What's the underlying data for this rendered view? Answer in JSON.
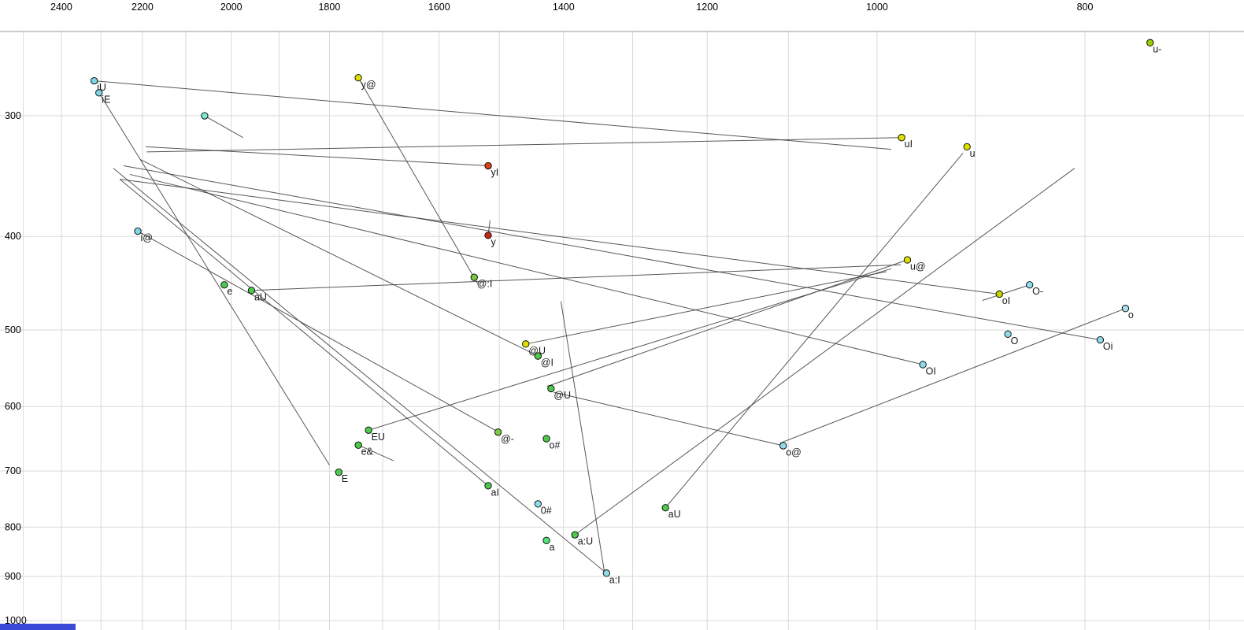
{
  "chart_data": {
    "type": "scatter",
    "title": "",
    "xlabel": "",
    "ylabel": "",
    "axes": {
      "x_ticks": [
        2400,
        2200,
        2000,
        1800,
        1600,
        1400,
        1200,
        1000,
        800
      ],
      "y_ticks": [
        300,
        400,
        500,
        600,
        700,
        800,
        900,
        1000
      ],
      "x_scale": "log",
      "y_scale": "log",
      "x_reversed": true,
      "x_range": [
        2564,
        674
      ],
      "y_range": [
        245,
        1011
      ],
      "grid": true,
      "grid_step": 100,
      "x_grid_from": 2500,
      "x_grid_to": 700
    },
    "points": [
      {
        "label": "u-",
        "f2": 746,
        "f1": 252,
        "color": "#9acd00"
      },
      {
        "label": "iU",
        "f2": 2317,
        "f1": 276,
        "color": "#7fd4e8"
      },
      {
        "label": "iE",
        "f2": 2305,
        "f1": 284,
        "color": "#7fd4e8"
      },
      {
        "label": "y@",
        "f2": 1745,
        "f1": 274,
        "color": "#e0e000"
      },
      {
        "label": "",
        "f2": 2058,
        "f1": 300,
        "color": "#7fe8d4"
      },
      {
        "label": "uI",
        "f2": 974,
        "f1": 316,
        "color": "#e0e000"
      },
      {
        "label": "u",
        "f2": 908,
        "f1": 323,
        "color": "#dede00"
      },
      {
        "label": "yI",
        "f2": 1518,
        "f1": 338,
        "color": "#d84315"
      },
      {
        "label": "y",
        "f2": 1518,
        "f1": 399,
        "color": "#c62814"
      },
      {
        "label": "i@",
        "f2": 2211,
        "f1": 395,
        "color": "#7fd4e8"
      },
      {
        "label": "u@",
        "f2": 968,
        "f1": 423,
        "color": "#dede00"
      },
      {
        "label": "O-",
        "f2": 849,
        "f1": 449,
        "color": "#8fdce8"
      },
      {
        "label": "oI",
        "f2": 877,
        "f1": 459,
        "color": "#c6d400"
      },
      {
        "label": "o",
        "f2": 766,
        "f1": 475,
        "color": "#a8e0ec"
      },
      {
        "label": "e",
        "f2": 2015,
        "f1": 449,
        "color": "#4ec94e"
      },
      {
        "label": "aU",
        "f2": 1957,
        "f1": 455,
        "color": "#4ec94e"
      },
      {
        "label": "@:I",
        "f2": 1541,
        "f1": 441,
        "color": "#79c945"
      },
      {
        "label": "O",
        "f2": 869,
        "f1": 505,
        "color": "#8fdce8"
      },
      {
        "label": "Oi",
        "f2": 787,
        "f1": 512,
        "color": "#8fdce8"
      },
      {
        "label": "@U",
        "f2": 1458,
        "f1": 517,
        "color": "#dede00"
      },
      {
        "label": "@I",
        "f2": 1439,
        "f1": 532,
        "color": "#4ec94e"
      },
      {
        "label": "OI",
        "f2": 952,
        "f1": 543,
        "color": "#8fdce8"
      },
      {
        "label": "@U",
        "f2": 1419,
        "f1": 575,
        "color": "#4ec94e"
      },
      {
        "label": "EU",
        "f2": 1726,
        "f1": 635,
        "color": "#4ec94e"
      },
      {
        "label": "@-",
        "f2": 1502,
        "f1": 638,
        "color": "#79c945"
      },
      {
        "label": "o#",
        "f2": 1426,
        "f1": 648,
        "color": "#4ec94e"
      },
      {
        "label": "e&",
        "f2": 1745,
        "f1": 658,
        "color": "#4ec94e"
      },
      {
        "label": "o@",
        "f2": 1106,
        "f1": 659,
        "color": "#8fdce8"
      },
      {
        "label": "E",
        "f2": 1782,
        "f1": 702,
        "color": "#4ec94e"
      },
      {
        "label": "aI",
        "f2": 1518,
        "f1": 725,
        "color": "#4ec94e"
      },
      {
        "label": "0#",
        "f2": 1439,
        "f1": 757,
        "color": "#8fdce8"
      },
      {
        "label": "aU",
        "f2": 1255,
        "f1": 764,
        "color": "#4ec94e"
      },
      {
        "label": "a:U",
        "f2": 1383,
        "f1": 815,
        "color": "#4ec94e"
      },
      {
        "label": "a",
        "f2": 1426,
        "f1": 826,
        "color": "#52e07a"
      },
      {
        "label": "a:I",
        "f2": 1337,
        "f1": 893,
        "color": "#8fdce8"
      }
    ],
    "trajectories": [
      {
        "start_label": "iU",
        "from": [
          2317,
          276
        ],
        "to": [
          985,
          325
        ]
      },
      {
        "start_label": "uI",
        "from": [
          974,
          316
        ],
        "to": [
          2190,
          327
        ]
      },
      {
        "start_label": "iE",
        "from": [
          2305,
          284
        ],
        "to": [
          1800,
          690
        ]
      },
      {
        "start_label": "i@",
        "from": [
          2211,
          395
        ],
        "to": [
          1505,
          636
        ]
      },
      {
        "start_label": "y@",
        "from": [
          1745,
          274
        ],
        "to": [
          1535,
          448
        ]
      },
      {
        "start_label": "yI",
        "from": [
          1518,
          338
        ],
        "to": [
          2192,
          323
        ]
      },
      {
        "start_label": "y",
        "from": [
          1518,
          399
        ],
        "to": [
          1515,
          385
        ]
      },
      {
        "start_label": "u@",
        "from": [
          968,
          423
        ],
        "to": [
          1425,
          572
        ]
      },
      {
        "start_label": "o@",
        "from": [
          1106,
          659
        ],
        "to": [
          1415,
          580
        ]
      },
      {
        "start_label": "@U",
        "from": [
          1458,
          517
        ],
        "to": [
          990,
          435
        ]
      },
      {
        "start_label": "@I",
        "from": [
          1439,
          532
        ],
        "to": [
          2205,
          333
        ]
      },
      {
        "start_label": "oI",
        "from": [
          877,
          459
        ],
        "to": [
          2254,
          349
        ]
      },
      {
        "start_label": "OI",
        "from": [
          952,
          543
        ],
        "to": [
          2230,
          345
        ]
      },
      {
        "start_label": "Oi",
        "from": [
          787,
          512
        ],
        "to": [
          2245,
          338
        ]
      },
      {
        "start_label": "O-",
        "from": [
          849,
          449
        ],
        "to": [
          893,
          466
        ]
      },
      {
        "start_label": "aI",
        "from": [
          1518,
          725
        ],
        "to": [
          2254,
          349
        ]
      },
      {
        "start_label": "a:I",
        "from": [
          1337,
          893
        ],
        "to": [
          2270,
          340
        ]
      },
      {
        "start_label": "",
        "from": [
          1404,
          467
        ],
        "to": [
          1340,
          890
        ]
      },
      {
        "start_label": "a:U",
        "from": [
          1383,
          815
        ],
        "to": [
          809,
          340
        ]
      },
      {
        "start_label": "aU",
        "from": [
          1255,
          764
        ],
        "to": [
          912,
          328
        ]
      },
      {
        "start_label": "EU",
        "from": [
          1726,
          635
        ],
        "to": [
          985,
          432
        ]
      },
      {
        "start_label": "e&",
        "from": [
          1745,
          658
        ],
        "to": [
          1680,
          683
        ]
      },
      {
        "start_label": "aU",
        "from": [
          1957,
          455
        ],
        "to": [
          975,
          428
        ]
      },
      {
        "start_label": "o",
        "from": [
          766,
          475
        ],
        "to": [
          1110,
          655
        ]
      },
      {
        "start_label": "",
        "from": [
          2058,
          300
        ],
        "to": [
          1975,
          316
        ]
      }
    ],
    "colors": {
      "grid": "#d9d9d9",
      "plot_border": "#9a9a9a",
      "line": "#3a3a3a",
      "axis_text": "#000000",
      "point_stroke": "#000000",
      "label_text": "#1a1a1a",
      "selection_bar": "#3b4bd8"
    }
  }
}
